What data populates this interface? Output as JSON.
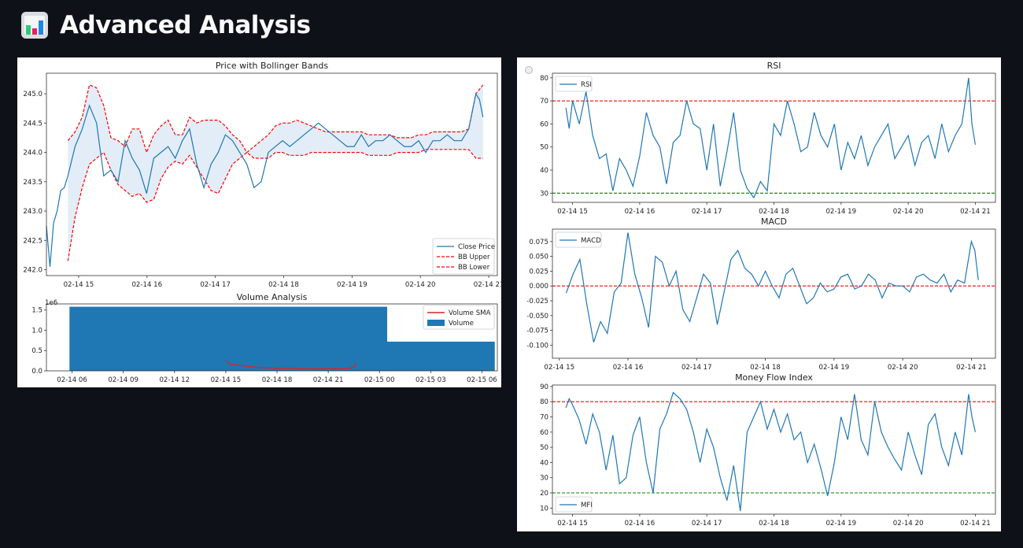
{
  "header": {
    "title": "Advanced Analysis",
    "icon": "bar-chart-icon"
  },
  "colors": {
    "line": "#1f77b4",
    "band": "#dce9f5",
    "upper": "#ff0000",
    "rsi_low": "#008000",
    "sma": "#d62728",
    "background": "#0e1117"
  },
  "chart_data": [
    {
      "id": "price",
      "type": "line",
      "title": "Price with Bollinger Bands",
      "xlabel": "",
      "ylabel": "",
      "x_ticks": [
        "02-14 15",
        "02-14 16",
        "02-14 17",
        "02-14 18",
        "02-14 19",
        "02-14 20",
        "02-14 21"
      ],
      "y_ticks": [
        "242.0",
        "242.5",
        "243.0",
        "243.5",
        "244.0",
        "244.5",
        "245.0"
      ],
      "ylim": [
        241.9,
        245.35
      ],
      "xlim": [
        0,
        6.3
      ],
      "legend": [
        "Close Price",
        "BB Upper",
        "BB Lower"
      ],
      "legend_position": "lower-right",
      "series": [
        {
          "name": "Close Price",
          "x": [
            0.0,
            0.05,
            0.1,
            0.15,
            0.2,
            0.25,
            0.3,
            0.4,
            0.5,
            0.6,
            0.7,
            0.8,
            0.9,
            1.0,
            1.1,
            1.2,
            1.3,
            1.4,
            1.5,
            1.6,
            1.7,
            1.8,
            1.9,
            2.0,
            2.1,
            2.2,
            2.3,
            2.4,
            2.5,
            2.6,
            2.7,
            2.8,
            2.9,
            3.0,
            3.1,
            3.2,
            3.3,
            3.4,
            3.5,
            3.6,
            3.7,
            3.8,
            3.9,
            4.0,
            4.1,
            4.2,
            4.3,
            4.4,
            4.5,
            4.6,
            4.7,
            4.8,
            4.9,
            5.0,
            5.1,
            5.2,
            5.3,
            5.4,
            5.5,
            5.6,
            5.7,
            5.8,
            5.9,
            5.95,
            6.0,
            6.05,
            6.1
          ],
          "y": [
            242.75,
            242.05,
            242.8,
            243.0,
            243.35,
            243.4,
            243.6,
            244.1,
            244.4,
            244.8,
            244.5,
            243.6,
            243.7,
            243.5,
            244.2,
            243.9,
            243.7,
            243.3,
            243.9,
            244.0,
            244.1,
            243.9,
            244.2,
            244.4,
            243.8,
            243.4,
            243.8,
            244.0,
            244.3,
            244.2,
            244.0,
            243.8,
            243.4,
            243.5,
            244.0,
            244.1,
            244.2,
            244.1,
            244.2,
            244.3,
            244.4,
            244.5,
            244.4,
            244.3,
            244.2,
            244.1,
            244.1,
            244.3,
            244.1,
            244.2,
            244.2,
            244.3,
            244.2,
            244.1,
            244.1,
            244.2,
            244.0,
            244.2,
            244.2,
            244.3,
            244.2,
            244.2,
            244.4,
            244.7,
            245.0,
            244.9,
            244.6
          ]
        },
        {
          "name": "BB Upper",
          "x": [
            0.3,
            0.4,
            0.5,
            0.6,
            0.7,
            0.8,
            0.9,
            1.0,
            1.1,
            1.2,
            1.3,
            1.4,
            1.5,
            1.6,
            1.7,
            1.8,
            1.9,
            2.0,
            2.1,
            2.2,
            2.3,
            2.4,
            2.5,
            2.6,
            2.7,
            2.8,
            2.9,
            3.0,
            3.1,
            3.2,
            3.3,
            3.4,
            3.5,
            3.6,
            3.7,
            3.8,
            3.9,
            4.0,
            4.1,
            4.2,
            4.3,
            4.4,
            4.5,
            4.6,
            4.7,
            4.8,
            4.9,
            5.0,
            5.1,
            5.2,
            5.3,
            5.4,
            5.5,
            5.6,
            5.7,
            5.8,
            5.9,
            6.0,
            6.1
          ],
          "y": [
            244.2,
            244.35,
            244.6,
            245.15,
            245.1,
            244.8,
            244.25,
            244.2,
            244.1,
            244.4,
            244.4,
            244.0,
            244.3,
            244.45,
            244.55,
            244.3,
            244.3,
            244.6,
            244.5,
            244.55,
            244.55,
            244.55,
            244.45,
            244.3,
            244.2,
            244.0,
            244.1,
            244.2,
            244.3,
            244.45,
            244.5,
            244.5,
            244.55,
            244.5,
            244.45,
            244.4,
            244.35,
            244.35,
            244.35,
            244.35,
            244.35,
            244.35,
            244.3,
            244.3,
            244.3,
            244.3,
            244.25,
            244.25,
            244.25,
            244.3,
            244.3,
            244.35,
            244.35,
            244.35,
            244.35,
            244.35,
            244.4,
            245.0,
            245.15
          ]
        },
        {
          "name": "BB Lower",
          "x": [
            0.3,
            0.4,
            0.5,
            0.6,
            0.7,
            0.8,
            0.9,
            1.0,
            1.1,
            1.2,
            1.3,
            1.4,
            1.5,
            1.6,
            1.7,
            1.8,
            1.9,
            2.0,
            2.1,
            2.2,
            2.3,
            2.4,
            2.5,
            2.6,
            2.7,
            2.8,
            2.9,
            3.0,
            3.1,
            3.2,
            3.3,
            3.4,
            3.5,
            3.6,
            3.7,
            3.8,
            3.9,
            4.0,
            4.1,
            4.2,
            4.3,
            4.4,
            4.5,
            4.6,
            4.7,
            4.8,
            4.9,
            5.0,
            5.1,
            5.2,
            5.3,
            5.4,
            5.5,
            5.6,
            5.7,
            5.8,
            5.9,
            6.0,
            6.1
          ],
          "y": [
            242.15,
            242.9,
            243.4,
            243.8,
            243.9,
            244.0,
            243.7,
            243.45,
            243.35,
            243.25,
            243.3,
            243.15,
            243.2,
            243.55,
            243.75,
            243.85,
            243.8,
            243.95,
            243.75,
            243.55,
            243.35,
            243.3,
            243.55,
            243.8,
            243.9,
            244.0,
            243.9,
            243.9,
            243.9,
            244.0,
            244.0,
            243.95,
            243.95,
            243.95,
            244.0,
            244.0,
            244.0,
            244.0,
            244.0,
            244.0,
            244.0,
            244.0,
            243.95,
            243.95,
            243.95,
            243.95,
            244.0,
            244.0,
            244.0,
            244.0,
            244.05,
            244.05,
            244.05,
            244.05,
            244.05,
            244.05,
            244.05,
            243.9,
            243.9
          ]
        }
      ]
    },
    {
      "id": "volume",
      "type": "bar",
      "title": "Volume Analysis",
      "y_offset_label": "1e6",
      "x_ticks": [
        "02-14 06",
        "02-14 09",
        "02-14 12",
        "02-14 15",
        "02-14 18",
        "02-14 21",
        "02-15 00",
        "02-15 03",
        "02-15 06"
      ],
      "y_ticks": [
        "0.0",
        "0.5",
        "1.0",
        "1.5"
      ],
      "ylim": [
        0,
        1.65
      ],
      "xlim": [
        -0.5,
        8.3
      ],
      "legend": [
        "Volume SMA",
        "Volume"
      ],
      "legend_position": "upper-right",
      "bars": [
        {
          "x0": -0.05,
          "x1": 6.15,
          "value": 1.58
        },
        {
          "x0": 6.15,
          "x1": 8.25,
          "value": 0.72
        }
      ],
      "sma": {
        "x": [
          3.0,
          3.1,
          3.3,
          3.6,
          4.0,
          4.5,
          5.0,
          5.4,
          5.5,
          5.55
        ],
        "y": [
          0.26,
          0.16,
          0.13,
          0.09,
          0.06,
          0.05,
          0.05,
          0.06,
          0.1,
          0.2
        ]
      }
    },
    {
      "id": "rsi",
      "type": "line",
      "title": "RSI",
      "x_ticks": [
        "02-14 15",
        "02-14 16",
        "02-14 17",
        "02-14 18",
        "02-14 19",
        "02-14 20",
        "02-14 21"
      ],
      "y_ticks": [
        "30",
        "40",
        "50",
        "60",
        "70",
        "80"
      ],
      "ylim": [
        26,
        82
      ],
      "xlim": [
        -0.3,
        6.3
      ],
      "legend": [
        "RSI"
      ],
      "legend_position": "upper-left",
      "hlines": [
        {
          "value": 70,
          "color": "upper"
        },
        {
          "value": 30,
          "color": "rsi_low"
        }
      ],
      "series": [
        {
          "name": "RSI",
          "x": [
            -0.1,
            -0.05,
            0.0,
            0.1,
            0.2,
            0.3,
            0.4,
            0.5,
            0.6,
            0.7,
            0.8,
            0.9,
            1.0,
            1.1,
            1.2,
            1.3,
            1.4,
            1.5,
            1.6,
            1.7,
            1.8,
            1.9,
            2.0,
            2.1,
            2.2,
            2.3,
            2.4,
            2.5,
            2.6,
            2.7,
            2.8,
            2.9,
            3.0,
            3.1,
            3.2,
            3.3,
            3.4,
            3.5,
            3.6,
            3.7,
            3.8,
            3.9,
            4.0,
            4.1,
            4.2,
            4.3,
            4.4,
            4.5,
            4.6,
            4.7,
            4.8,
            4.9,
            5.0,
            5.1,
            5.2,
            5.3,
            5.4,
            5.5,
            5.6,
            5.7,
            5.8,
            5.85,
            5.9,
            5.95,
            6.0
          ],
          "y": [
            67,
            58,
            70,
            60,
            74,
            55,
            45,
            47,
            31,
            45,
            40,
            33,
            46,
            65,
            55,
            50,
            34,
            52,
            55,
            70,
            60,
            58,
            40,
            60,
            33,
            48,
            65,
            40,
            32,
            28,
            35,
            31,
            60,
            55,
            70,
            60,
            48,
            50,
            65,
            55,
            50,
            60,
            40,
            52,
            45,
            55,
            42,
            50,
            55,
            60,
            45,
            50,
            55,
            42,
            52,
            55,
            45,
            60,
            48,
            55,
            60,
            70,
            80,
            60,
            51
          ]
        }
      ]
    },
    {
      "id": "macd",
      "type": "line",
      "title": "MACD",
      "x_ticks": [
        "02-14 15",
        "02-14 16",
        "02-14 17",
        "02-14 18",
        "02-14 19",
        "02-14 20",
        "02-14 21"
      ],
      "y_ticks": [
        "-0.100",
        "-0.075",
        "-0.050",
        "-0.025",
        "0.000",
        "0.025",
        "0.050",
        "0.075"
      ],
      "ylim": [
        -0.122,
        0.096
      ],
      "xlim": [
        -0.1,
        6.35
      ],
      "legend": [
        "MACD"
      ],
      "legend_position": "upper-left",
      "hlines": [
        {
          "value": 0,
          "color": "upper"
        }
      ],
      "series": [
        {
          "name": "MACD",
          "x": [
            0.1,
            0.2,
            0.3,
            0.4,
            0.5,
            0.6,
            0.7,
            0.8,
            0.9,
            1.0,
            1.1,
            1.2,
            1.3,
            1.4,
            1.5,
            1.6,
            1.7,
            1.8,
            1.9,
            2.0,
            2.1,
            2.2,
            2.3,
            2.4,
            2.5,
            2.6,
            2.7,
            2.8,
            2.9,
            3.0,
            3.1,
            3.2,
            3.3,
            3.4,
            3.5,
            3.6,
            3.7,
            3.8,
            3.9,
            4.0,
            4.1,
            4.2,
            4.3,
            4.4,
            4.5,
            4.6,
            4.7,
            4.8,
            4.9,
            5.0,
            5.1,
            5.2,
            5.3,
            5.4,
            5.5,
            5.6,
            5.7,
            5.8,
            5.9,
            6.0,
            6.05,
            6.1
          ],
          "y": [
            -0.012,
            0.02,
            0.045,
            -0.03,
            -0.095,
            -0.06,
            -0.08,
            -0.01,
            0.005,
            0.09,
            0.02,
            -0.02,
            -0.07,
            0.05,
            0.04,
            0.0,
            0.025,
            -0.04,
            -0.06,
            -0.02,
            0.02,
            0.005,
            -0.065,
            -0.01,
            0.045,
            0.06,
            0.03,
            0.02,
            0.0,
            0.025,
            0.0,
            -0.02,
            0.02,
            0.03,
            0.0,
            -0.03,
            -0.02,
            0.005,
            -0.01,
            -0.005,
            0.015,
            0.02,
            -0.005,
            0.0,
            0.02,
            0.01,
            -0.02,
            0.005,
            0.0,
            0.0,
            -0.01,
            0.015,
            0.02,
            0.01,
            0.005,
            0.02,
            -0.01,
            0.01,
            0.005,
            0.075,
            0.06,
            0.01
          ]
        }
      ]
    },
    {
      "id": "mfi",
      "type": "line",
      "title": "Money Flow Index",
      "x_ticks": [
        "02-14 15",
        "02-14 16",
        "02-14 17",
        "02-14 18",
        "02-14 19",
        "02-14 20",
        "02-14 21"
      ],
      "y_ticks": [
        "10",
        "20",
        "30",
        "40",
        "50",
        "60",
        "70",
        "80",
        "90"
      ],
      "ylim": [
        6,
        91
      ],
      "xlim": [
        -0.3,
        6.3
      ],
      "legend": [
        "MFI"
      ],
      "legend_position": "lower-left",
      "hlines": [
        {
          "value": 80,
          "color": "upper"
        },
        {
          "value": 20,
          "color": "rsi_low"
        }
      ],
      "series": [
        {
          "name": "MFI",
          "x": [
            -0.1,
            -0.05,
            0.0,
            0.1,
            0.2,
            0.3,
            0.4,
            0.5,
            0.6,
            0.7,
            0.8,
            0.9,
            1.0,
            1.1,
            1.2,
            1.3,
            1.4,
            1.5,
            1.6,
            1.7,
            1.8,
            1.9,
            2.0,
            2.1,
            2.2,
            2.3,
            2.4,
            2.5,
            2.6,
            2.7,
            2.8,
            2.9,
            3.0,
            3.1,
            3.2,
            3.3,
            3.4,
            3.5,
            3.6,
            3.7,
            3.8,
            3.9,
            4.0,
            4.1,
            4.2,
            4.3,
            4.4,
            4.5,
            4.6,
            4.7,
            4.8,
            4.9,
            5.0,
            5.1,
            5.2,
            5.3,
            5.4,
            5.5,
            5.6,
            5.7,
            5.8,
            5.9,
            5.95,
            6.0
          ],
          "y": [
            76,
            82,
            78,
            68,
            52,
            72,
            60,
            35,
            58,
            26,
            30,
            58,
            70,
            40,
            20,
            62,
            72,
            86,
            82,
            75,
            60,
            40,
            62,
            50,
            30,
            15,
            38,
            8,
            60,
            70,
            80,
            62,
            75,
            60,
            72,
            55,
            60,
            40,
            52,
            36,
            18,
            40,
            70,
            55,
            85,
            55,
            45,
            80,
            60,
            50,
            42,
            35,
            60,
            45,
            32,
            65,
            72,
            50,
            38,
            60,
            45,
            85,
            70,
            60
          ]
        }
      ]
    }
  ]
}
